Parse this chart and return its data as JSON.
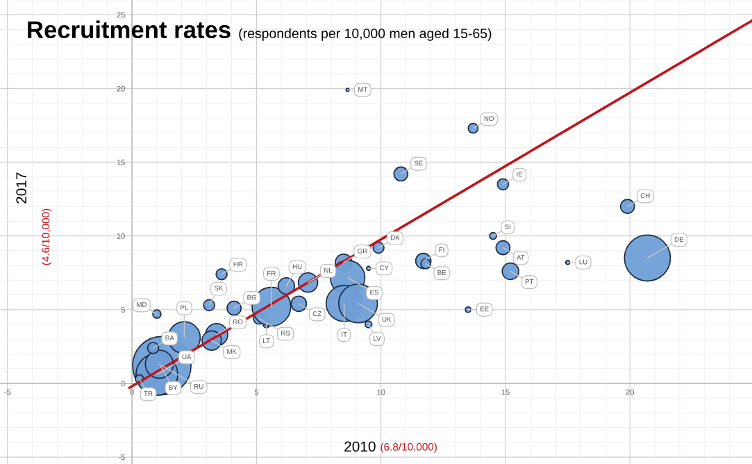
{
  "chart_data": {
    "type": "bubble",
    "title": "Recruitment rates",
    "subtitle": "(respondents per 10,000 men aged 15-65)",
    "xlabel": "2010",
    "ylabel": "2017",
    "xlim": [
      -5.3,
      24.9
    ],
    "ylim": [
      -5.47,
      26.0
    ],
    "xticks": [
      -5,
      0,
      5,
      10,
      15,
      20
    ],
    "yticks": [
      -5,
      0,
      5,
      10,
      15,
      20,
      25
    ],
    "grid": true,
    "series": [
      {
        "color": "#6f9fd6",
        "x": [
          1.2,
          1.0,
          1.1,
          0.85,
          0.3,
          2.1,
          3.4,
          3.2,
          1.0,
          3.6,
          3.1,
          4.1,
          5.1,
          5.4,
          5.6,
          6.7,
          6.2,
          7.07,
          8.5,
          8.66,
          8.52,
          9.08,
          9.5,
          9.5,
          9.9,
          8.66,
          10.8,
          13.7,
          14.9,
          14.5,
          14.9,
          15.2,
          11.7,
          11.8,
          13.5,
          17.5,
          19.9,
          20.7
        ],
        "values": [
          1.2,
          0.6,
          1.3,
          2.4,
          0.3,
          3.1,
          3.3,
          2.9,
          4.7,
          7.4,
          5.3,
          5.1,
          4.4,
          4.0,
          5.2,
          5.4,
          6.6,
          6.84,
          8.2,
          7.17,
          5.42,
          5.42,
          4.0,
          7.8,
          9.2,
          19.9,
          14.2,
          17.3,
          13.5,
          10.0,
          9.2,
          7.6,
          8.3,
          8.1,
          5.0,
          8.2,
          12.0,
          8.5
        ],
        "sizes": [
          1.0,
          0.51,
          0.23,
          0.036,
          0.02,
          0.3,
          0.145,
          0.11,
          0.02,
          0.036,
          0.036,
          0.057,
          0.036,
          0.014,
          0.44,
          0.069,
          0.08,
          0.11,
          0.08,
          0.35,
          0.38,
          0.44,
          0.014,
          0.005,
          0.036,
          0.003,
          0.057,
          0.028,
          0.036,
          0.014,
          0.057,
          0.08,
          0.069,
          0.028,
          0.009,
          0.005,
          0.057,
          0.62
        ]
      },
      {
        "type": "line",
        "color": "#c0161c",
        "x": [
          -0.1,
          24.9
        ],
        "values": [
          -0.3,
          24.6
        ]
      }
    ],
    "annotations": [
      {
        "text": "RU",
        "x": 1.2,
        "y": 1.2
      },
      {
        "text": "UA",
        "x": 1.0,
        "y": 0.6
      },
      {
        "text": "BY",
        "x": 1.1,
        "y": 1.3
      },
      {
        "text": "BA",
        "x": 0.85,
        "y": 2.4
      },
      {
        "text": "TR",
        "x": 0.3,
        "y": 0.3
      },
      {
        "text": "PL",
        "x": 2.1,
        "y": 3.1
      },
      {
        "text": "RO",
        "x": 3.4,
        "y": 3.3
      },
      {
        "text": "MK",
        "x": 3.2,
        "y": 2.9
      },
      {
        "text": "MD",
        "x": 1.0,
        "y": 4.7
      },
      {
        "text": "HR",
        "x": 3.6,
        "y": 7.4
      },
      {
        "text": "SK",
        "x": 3.1,
        "y": 5.3
      },
      {
        "text": "BG",
        "x": 4.1,
        "y": 5.1
      },
      {
        "text": "RS",
        "x": 5.1,
        "y": 4.4
      },
      {
        "text": "LT",
        "x": 5.4,
        "y": 4.0
      },
      {
        "text": "FR",
        "x": 5.6,
        "y": 5.2
      },
      {
        "text": "CZ",
        "x": 6.7,
        "y": 5.4
      },
      {
        "text": "HU",
        "x": 6.2,
        "y": 6.6
      },
      {
        "text": "NL",
        "x": 7.07,
        "y": 6.84
      },
      {
        "text": "GR",
        "x": 8.5,
        "y": 8.2
      },
      {
        "text": "ES",
        "x": 8.66,
        "y": 7.17
      },
      {
        "text": "IT",
        "x": 8.52,
        "y": 5.42
      },
      {
        "text": "UK",
        "x": 9.08,
        "y": 5.42
      },
      {
        "text": "LV",
        "x": 9.5,
        "y": 4.0
      },
      {
        "text": "CY",
        "x": 9.5,
        "y": 7.8
      },
      {
        "text": "DK",
        "x": 9.9,
        "y": 9.2
      },
      {
        "text": "MT",
        "x": 8.66,
        "y": 19.9
      },
      {
        "text": "SE",
        "x": 10.8,
        "y": 14.2
      },
      {
        "text": "NO",
        "x": 13.7,
        "y": 17.3
      },
      {
        "text": "IE",
        "x": 14.9,
        "y": 13.5
      },
      {
        "text": "SI",
        "x": 14.5,
        "y": 10.0
      },
      {
        "text": "AT",
        "x": 14.9,
        "y": 9.2
      },
      {
        "text": "PT",
        "x": 15.2,
        "y": 7.6
      },
      {
        "text": "FI",
        "x": 11.7,
        "y": 8.3
      },
      {
        "text": "BE",
        "x": 11.8,
        "y": 8.1
      },
      {
        "text": "EE",
        "x": 13.5,
        "y": 5.0
      },
      {
        "text": "LU",
        "x": 17.5,
        "y": 8.2
      },
      {
        "text": "CH",
        "x": 19.9,
        "y": 12.0
      },
      {
        "text": "DE",
        "x": 20.7,
        "y": 8.5
      },
      "(6.8/10,000)",
      "(4.6/10,000)"
    ]
  }
}
